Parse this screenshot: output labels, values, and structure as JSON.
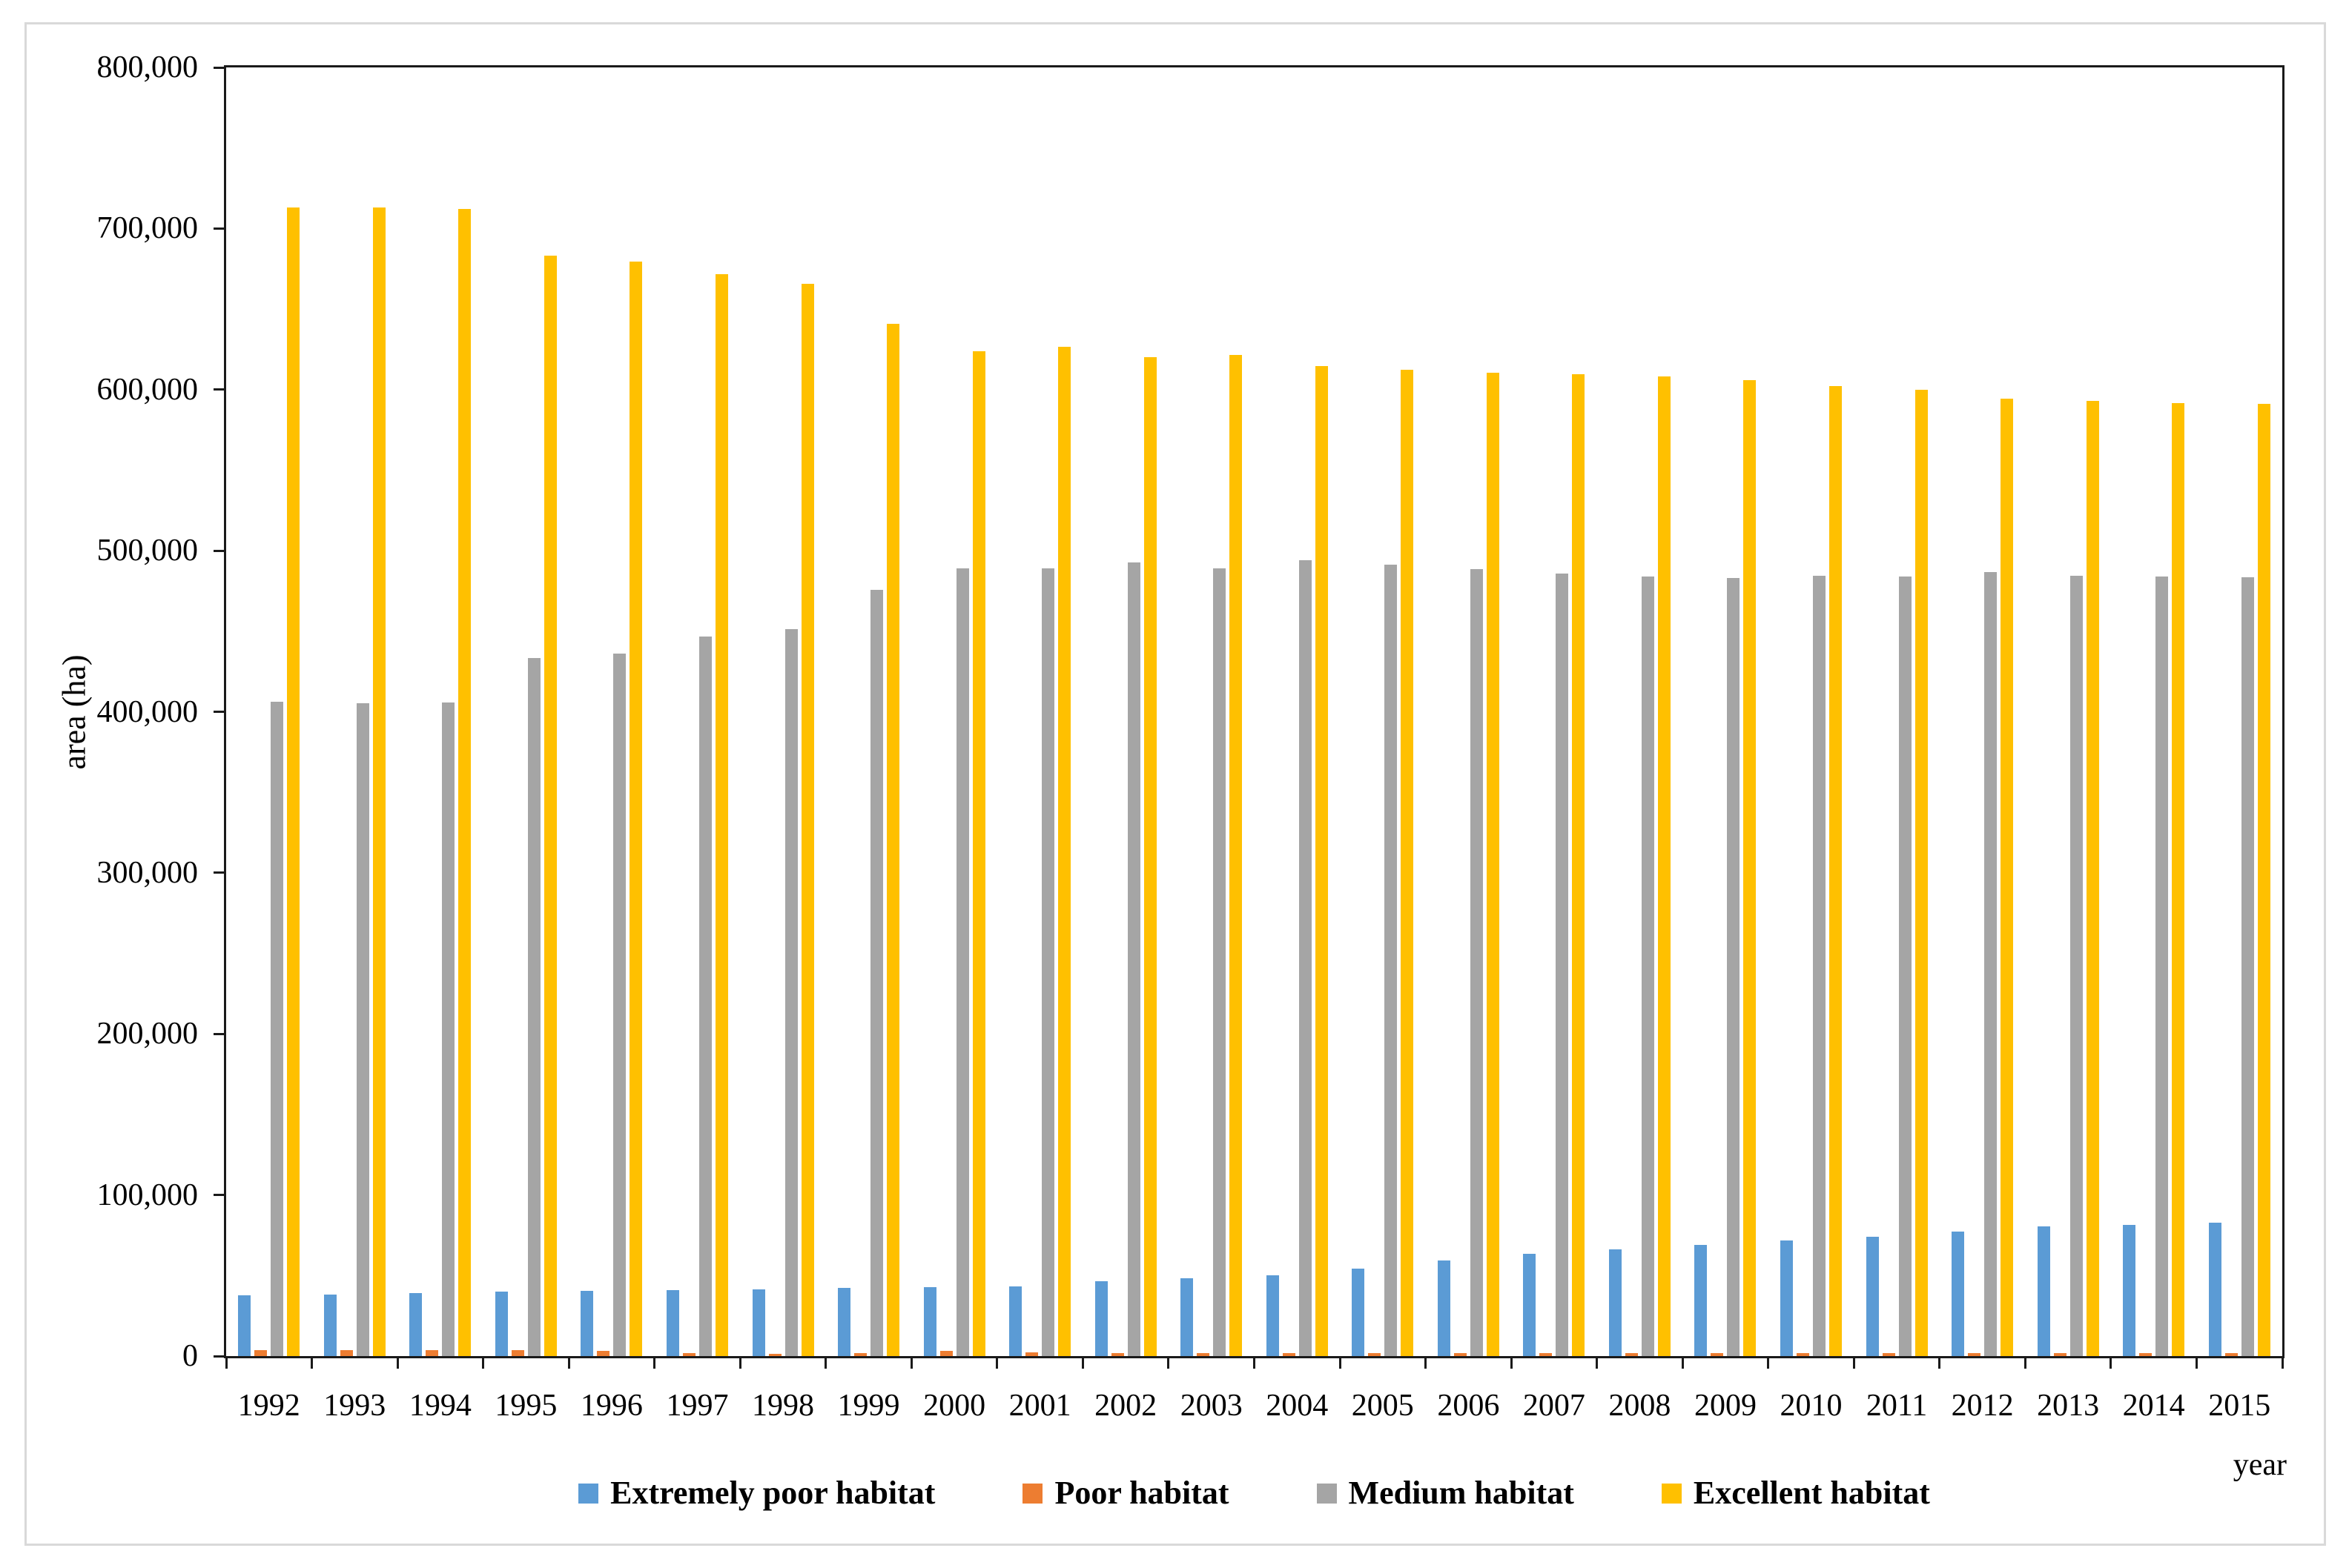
{
  "axes": {
    "y_title": "area (ha)",
    "x_title": "year"
  },
  "chart_data": {
    "type": "bar",
    "title": "",
    "xlabel": "year",
    "ylabel": "area (ha)",
    "ylim": [
      0,
      800000
    ],
    "y_tick_interval": 100000,
    "y_tick_labels": [
      "0",
      "100,000",
      "200,000",
      "300,000",
      "400,000",
      "500,000",
      "600,000",
      "700,000",
      "800,000"
    ],
    "grid": false,
    "legend_position": "bottom",
    "categories": [
      1992,
      1993,
      1994,
      1995,
      1996,
      1997,
      1998,
      1999,
      2000,
      2001,
      2002,
      2003,
      2004,
      2005,
      2006,
      2007,
      2008,
      2009,
      2010,
      2011,
      2012,
      2013,
      2014,
      2015
    ],
    "series": [
      {
        "name": "Extremely poor habitat",
        "color": "#5B9BD5",
        "values": [
          37500,
          38200,
          39000,
          40000,
          40600,
          40900,
          41400,
          42200,
          43000,
          43400,
          46500,
          48200,
          50200,
          54300,
          59200,
          63300,
          66400,
          69000,
          71600,
          74300,
          77200,
          80400,
          81500,
          83000
        ]
      },
      {
        "name": "Poor habitat",
        "color": "#ED7D31",
        "values": [
          3700,
          3700,
          3700,
          3600,
          3400,
          1900,
          1600,
          1900,
          3200,
          2100,
          2000,
          2000,
          1900,
          1900,
          1900,
          1800,
          1900,
          1900,
          1900,
          1800,
          1900,
          1900,
          1900,
          2000
        ]
      },
      {
        "name": "Medium habitat",
        "color": "#A5A5A5",
        "values": [
          406000,
          405500,
          405800,
          433500,
          436000,
          446500,
          451500,
          475500,
          489000,
          489000,
          492500,
          489000,
          494000,
          491500,
          488500,
          486000,
          484000,
          483000,
          484500,
          484000,
          486500,
          484500,
          484000,
          483500
        ]
      },
      {
        "name": "Excellent habitat",
        "color": "#FFC000",
        "values": [
          713000,
          713000,
          712000,
          683000,
          679500,
          671500,
          665500,
          641000,
          624000,
          626500,
          620000,
          621500,
          614500,
          612500,
          610500,
          609500,
          608000,
          606000,
          602000,
          600000,
          594500,
          593000,
          591500,
          591000
        ]
      }
    ]
  }
}
